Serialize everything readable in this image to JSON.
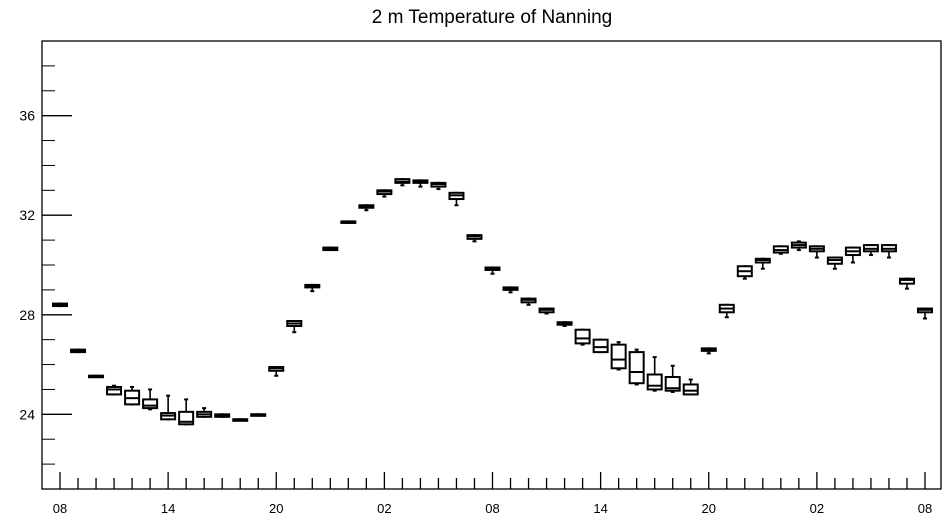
{
  "chart_data": {
    "type": "box",
    "title": "2 m Temperature of Nanning",
    "xlabel": "",
    "ylabel": "",
    "ylim": [
      21,
      39
    ],
    "y_ticks": [
      24,
      28,
      32,
      36
    ],
    "x_tick_labels": [
      "08",
      "14",
      "20",
      "02",
      "08",
      "14",
      "20",
      "02",
      "08"
    ],
    "x_tick_label_index": [
      0,
      6,
      12,
      18,
      24,
      30,
      36,
      42,
      48
    ],
    "grid": false,
    "series": [
      {
        "boxes": [
          {
            "min": 28.35,
            "q1": 28.35,
            "median": 28.4,
            "q3": 28.45,
            "max": 28.45
          },
          {
            "min": 26.5,
            "q1": 26.5,
            "median": 26.55,
            "q3": 26.6,
            "max": 26.6
          },
          {
            "min": 25.5,
            "q1": 25.5,
            "median": 25.55,
            "q3": 25.55,
            "max": 25.55
          },
          {
            "min": 24.8,
            "q1": 24.8,
            "median": 25.0,
            "q3": 25.1,
            "max": 25.15
          },
          {
            "min": 24.4,
            "q1": 24.4,
            "median": 24.65,
            "q3": 24.95,
            "max": 25.1
          },
          {
            "min": 24.2,
            "q1": 24.25,
            "median": 24.35,
            "q3": 24.6,
            "max": 25.0
          },
          {
            "min": 23.8,
            "q1": 23.8,
            "median": 23.95,
            "q3": 24.05,
            "max": 24.75
          },
          {
            "min": 23.6,
            "q1": 23.6,
            "median": 23.7,
            "q3": 24.1,
            "max": 24.6
          },
          {
            "min": 23.9,
            "q1": 23.9,
            "median": 24.0,
            "q3": 24.1,
            "max": 24.25
          },
          {
            "min": 23.9,
            "q1": 23.9,
            "median": 23.95,
            "q3": 24.0,
            "max": 24.0
          },
          {
            "min": 23.75,
            "q1": 23.75,
            "median": 23.8,
            "q3": 23.8,
            "max": 23.8
          },
          {
            "min": 23.95,
            "q1": 23.95,
            "median": 24.0,
            "q3": 24.0,
            "max": 24.0
          },
          {
            "min": 25.55,
            "q1": 25.75,
            "median": 25.85,
            "q3": 25.9,
            "max": 25.9
          },
          {
            "min": 27.3,
            "q1": 27.55,
            "median": 27.65,
            "q3": 27.75,
            "max": 27.75
          },
          {
            "min": 28.95,
            "q1": 29.1,
            "median": 29.15,
            "q3": 29.2,
            "max": 29.2
          },
          {
            "min": 30.6,
            "q1": 30.6,
            "median": 30.65,
            "q3": 30.7,
            "max": 30.7
          },
          {
            "min": 31.7,
            "q1": 31.7,
            "median": 31.75,
            "q3": 31.75,
            "max": 31.75
          },
          {
            "min": 32.2,
            "q1": 32.3,
            "median": 32.35,
            "q3": 32.4,
            "max": 32.4
          },
          {
            "min": 32.75,
            "q1": 32.85,
            "median": 32.95,
            "q3": 33.0,
            "max": 33.0
          },
          {
            "min": 33.2,
            "q1": 33.3,
            "median": 33.35,
            "q3": 33.45,
            "max": 33.45
          },
          {
            "min": 33.15,
            "q1": 33.3,
            "median": 33.35,
            "q3": 33.4,
            "max": 33.4
          },
          {
            "min": 33.05,
            "q1": 33.15,
            "median": 33.25,
            "q3": 33.3,
            "max": 33.3
          },
          {
            "min": 32.4,
            "q1": 32.65,
            "median": 32.8,
            "q3": 32.9,
            "max": 32.9
          },
          {
            "min": 30.95,
            "q1": 31.05,
            "median": 31.15,
            "q3": 31.2,
            "max": 31.2
          },
          {
            "min": 29.65,
            "q1": 29.8,
            "median": 29.85,
            "q3": 29.9,
            "max": 29.9
          },
          {
            "min": 28.9,
            "q1": 29.0,
            "median": 29.05,
            "q3": 29.1,
            "max": 29.1
          },
          {
            "min": 28.4,
            "q1": 28.5,
            "median": 28.6,
            "q3": 28.65,
            "max": 28.65
          },
          {
            "min": 28.05,
            "q1": 28.1,
            "median": 28.2,
            "q3": 28.25,
            "max": 28.25
          },
          {
            "min": 27.55,
            "q1": 27.6,
            "median": 27.65,
            "q3": 27.7,
            "max": 27.7
          },
          {
            "min": 26.8,
            "q1": 26.85,
            "median": 27.05,
            "q3": 27.4,
            "max": 27.4
          },
          {
            "min": 26.5,
            "q1": 26.5,
            "median": 26.7,
            "q3": 27.0,
            "max": 27.0
          },
          {
            "min": 25.8,
            "q1": 25.85,
            "median": 26.2,
            "q3": 26.8,
            "max": 26.9
          },
          {
            "min": 25.2,
            "q1": 25.25,
            "median": 25.7,
            "q3": 26.5,
            "max": 26.6
          },
          {
            "min": 24.95,
            "q1": 25.0,
            "median": 25.15,
            "q3": 25.6,
            "max": 26.3
          },
          {
            "min": 24.9,
            "q1": 24.95,
            "median": 25.05,
            "q3": 25.5,
            "max": 25.95
          },
          {
            "min": 24.8,
            "q1": 24.8,
            "median": 24.95,
            "q3": 25.2,
            "max": 25.4
          },
          {
            "min": 26.45,
            "q1": 26.55,
            "median": 26.6,
            "q3": 26.65,
            "max": 26.65
          },
          {
            "min": 27.9,
            "q1": 28.1,
            "median": 28.25,
            "q3": 28.4,
            "max": 28.4
          },
          {
            "min": 29.45,
            "q1": 29.55,
            "median": 29.75,
            "q3": 29.95,
            "max": 29.95
          },
          {
            "min": 29.85,
            "q1": 30.1,
            "median": 30.2,
            "q3": 30.25,
            "max": 30.25
          },
          {
            "min": 30.45,
            "q1": 30.5,
            "median": 30.6,
            "q3": 30.75,
            "max": 30.75
          },
          {
            "min": 30.6,
            "q1": 30.7,
            "median": 30.8,
            "q3": 30.9,
            "max": 30.95
          },
          {
            "min": 30.3,
            "q1": 30.55,
            "median": 30.65,
            "q3": 30.75,
            "max": 30.75
          },
          {
            "min": 29.85,
            "q1": 30.05,
            "median": 30.2,
            "q3": 30.3,
            "max": 30.3
          },
          {
            "min": 30.1,
            "q1": 30.4,
            "median": 30.55,
            "q3": 30.7,
            "max": 30.7
          },
          {
            "min": 30.4,
            "q1": 30.55,
            "median": 30.65,
            "q3": 30.8,
            "max": 30.8
          },
          {
            "min": 30.3,
            "q1": 30.55,
            "median": 30.65,
            "q3": 30.8,
            "max": 30.8
          },
          {
            "min": 29.05,
            "q1": 29.25,
            "median": 29.4,
            "q3": 29.45,
            "max": 29.45
          },
          {
            "min": 27.85,
            "q1": 28.1,
            "median": 28.2,
            "q3": 28.25,
            "max": 28.25
          }
        ]
      }
    ],
    "colors": {
      "box": "#000000",
      "axis": "#000000",
      "background": "#ffffff"
    }
  }
}
